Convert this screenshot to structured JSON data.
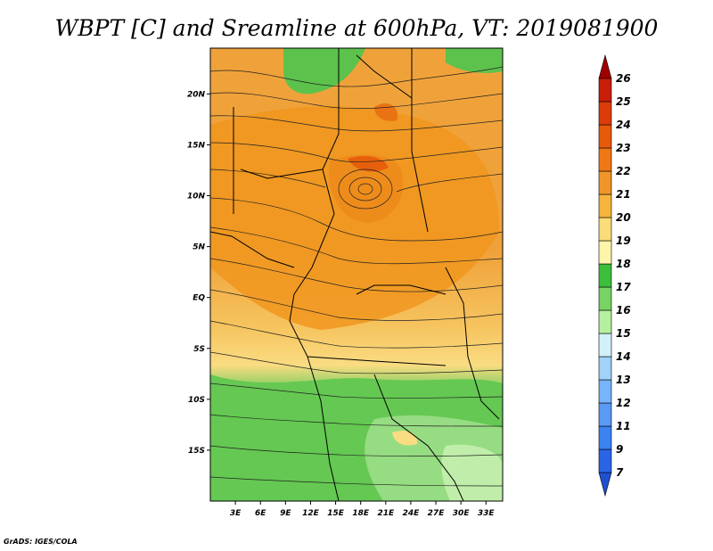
{
  "chart_data": {
    "type": "heatmap",
    "title": "WBPT [C] and Sreamline at 600hPa, VT: 2019081900",
    "x_ticks": [
      "3E",
      "6E",
      "9E",
      "12E",
      "15E",
      "18E",
      "21E",
      "24E",
      "27E",
      "30E",
      "33E"
    ],
    "x_tick_values": [
      3,
      6,
      9,
      12,
      15,
      18,
      21,
      24,
      27,
      30,
      33
    ],
    "y_ticks": [
      "20N",
      "15N",
      "10N",
      "5N",
      "EQ",
      "5S",
      "10S",
      "15S"
    ],
    "y_tick_values": [
      20,
      15,
      10,
      5,
      0,
      -5,
      -10,
      -15
    ],
    "xlim": [
      0,
      35
    ],
    "ylim": [
      -20,
      24.5
    ],
    "colorbar": {
      "labels": [
        "7",
        "9",
        "11",
        "12",
        "13",
        "14",
        "15",
        "16",
        "17",
        "18",
        "19",
        "20",
        "21",
        "22",
        "23",
        "24",
        "25",
        "26"
      ],
      "colors": [
        "#1e50d2",
        "#2a64e6",
        "#3c82f0",
        "#5a9af5",
        "#78b4fa",
        "#a0d2fa",
        "#d2f0fa",
        "#b4f0a0",
        "#78d264",
        "#3cbe3c",
        "#fff5aa",
        "#fadc78",
        "#f5b43c",
        "#f09628",
        "#f07814",
        "#e65a0a",
        "#dc3c0a",
        "#c81e0a",
        "#a00000"
      ],
      "extend": "both"
    },
    "fields": [
      {
        "lat": 20,
        "lon": 10,
        "wbpt": 21
      },
      {
        "lat": 12,
        "lon": 18,
        "wbpt": 22
      },
      {
        "lat": 5,
        "lon": 15,
        "wbpt": 21
      },
      {
        "lat": 0,
        "lon": 20,
        "wbpt": 21
      },
      {
        "lat": -5,
        "lon": 15,
        "wbpt": 20
      },
      {
        "lat": -12,
        "lon": 10,
        "wbpt": 17
      },
      {
        "lat": -15,
        "lon": 30,
        "wbpt": 16
      },
      {
        "lat": 22,
        "lon": 12,
        "wbpt": 17
      }
    ]
  },
  "credit": "GrADS: IGES/COLA"
}
